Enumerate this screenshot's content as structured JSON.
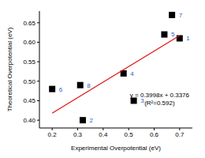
{
  "chart_data": {
    "type": "scatter",
    "x_label": "Experimental Overpotential  (eV)",
    "y_label": "Theoretical Overpotential  (eV)",
    "xlim": [
      0.15,
      0.75
    ],
    "xticks": [
      0.2,
      0.3,
      0.4,
      0.5,
      0.6,
      0.7
    ],
    "ylim": [
      0.38,
      0.68
    ],
    "yticks": [
      {
        "value": 0.4,
        "label": "0.40"
      },
      {
        "value": 0.45,
        "label": "0.45"
      },
      {
        "value": 0.5,
        "label": "0.50"
      },
      {
        "value": 0.55,
        "label": "0.55"
      },
      {
        "value": 0.6,
        "label": "0.60"
      },
      {
        "value": 0.65,
        "label": "0.65"
      }
    ],
    "annotation": [
      "y = 0.3998x + 0.3376",
      "(R²=0.592)"
    ],
    "series": [
      {
        "type": "scatter",
        "color": "#000000",
        "marker": "square",
        "x": [
          0.7,
          0.32,
          0.52,
          0.48,
          0.64,
          0.2,
          0.67,
          0.31
        ],
        "values": [
          0.61,
          0.4,
          0.45,
          0.52,
          0.62,
          0.48,
          0.67,
          0.49
        ],
        "labels": [
          "1",
          "2",
          "3",
          "4",
          "5",
          "6",
          "7",
          "8"
        ],
        "label_color": "#2a62c9"
      },
      {
        "type": "line",
        "color": "#e01010",
        "line_style": "solid",
        "x": [
          0.2,
          0.7
        ],
        "values": [
          0.418,
          0.617
        ]
      }
    ]
  }
}
